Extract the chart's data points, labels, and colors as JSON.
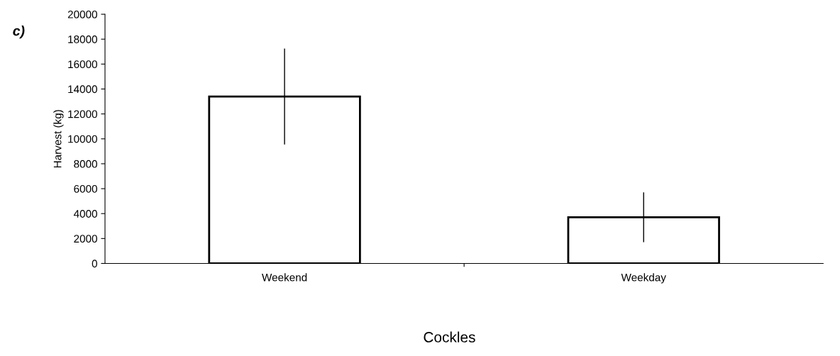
{
  "chart_data": {
    "type": "bar",
    "title": "c)",
    "xlabel": "Cockles",
    "ylabel": "Harvest (kg)",
    "categories": [
      "Weekend",
      "Weekday"
    ],
    "values": [
      13400,
      3700
    ],
    "errors": [
      3850,
      2000
    ],
    "color": "#ffffff",
    "ylim": [
      0,
      20000
    ],
    "yticks": [
      0,
      2000,
      4000,
      6000,
      8000,
      10000,
      12000,
      14000,
      16000,
      18000,
      20000
    ],
    "grid": false,
    "legend": false
  }
}
